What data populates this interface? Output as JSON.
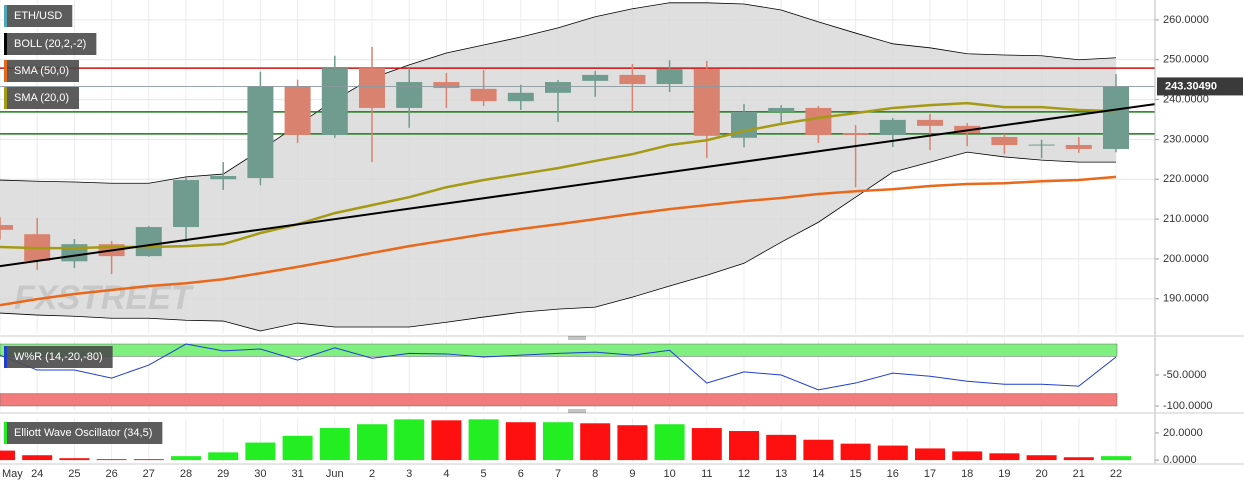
{
  "chart_data": [
    {
      "type": "candlestick",
      "series": [
        {
          "name": "ETH/USD",
          "color": "#4aa8b8",
          "up_color": "#6f9c8e",
          "down_color": "#d9826f",
          "open": [
            208.5,
            206.2,
            199.4,
            203.7,
            200.7,
            208,
            220,
            220.3,
            243.4,
            231.1,
            247.9,
            237.9,
            244.4,
            242.7,
            239.6,
            241.7,
            244.7,
            246.2,
            243.9,
            247.7,
            230.4,
            236.9,
            237.9,
            231.6,
            231.1,
            234.9,
            233.4,
            230.6,
            228.6,
            228.6,
            227.6
          ],
          "high": [
            210.5,
            210.3,
            205,
            204.5,
            208.3,
            220.5,
            224.3,
            247,
            245,
            251,
            253.2,
            247.9,
            246.7,
            247.4,
            243.7,
            244.9,
            247.2,
            248.9,
            249.9,
            249.7,
            238.9,
            238.6,
            238.4,
            233.6,
            235.4,
            236.4,
            234.1,
            231.4,
            229.9,
            230.6,
            246.4
          ],
          "low": [
            204.8,
            197.2,
            197.7,
            196.2,
            200.5,
            204.2,
            217.3,
            218.5,
            229.1,
            230.4,
            224.3,
            232.9,
            237.9,
            238.4,
            237.4,
            234.4,
            240.7,
            236.9,
            241.9,
            225.3,
            228,
            234.1,
            229.1,
            218,
            228.1,
            227.3,
            228.3,
            226.3,
            225.3,
            226.6,
            226.8
          ],
          "close": [
            207.3,
            199.5,
            203.7,
            200.7,
            208,
            219.8,
            220.8,
            243.4,
            231.1,
            247.9,
            237.9,
            244.4,
            242.9,
            239.6,
            241.7,
            244.4,
            246.2,
            243.9,
            247.7,
            230.9,
            236.9,
            237.9,
            231.1,
            231.1,
            234.9,
            233.4,
            231.6,
            228.6,
            228.7,
            227.6,
            243.3
          ]
        }
      ],
      "overlays": [
        {
          "name": "BOLL (20,2,-2)",
          "color": "#000000",
          "upper": [
            219.8,
            219.5,
            219.3,
            219,
            219,
            220.6,
            221.3,
            227.3,
            233.6,
            239.9,
            245.4,
            248.7,
            251.7,
            253.7,
            255.7,
            258,
            260.8,
            262.8,
            264.3,
            264.3,
            264,
            262.5,
            259.5,
            256.7,
            254,
            253,
            251.5,
            251.2,
            251,
            250,
            250.5
          ],
          "lower": [
            186.4,
            185.9,
            185.6,
            185.1,
            185.1,
            184.6,
            184.4,
            181.9,
            183.9,
            182.9,
            182.9,
            182.9,
            184.1,
            185.4,
            186.6,
            187.4,
            187.9,
            190.4,
            193.2,
            195.9,
            198.9,
            204.2,
            209.2,
            215.5,
            221.8,
            224.3,
            226.8,
            225.6,
            224.8,
            224.3,
            224.3
          ]
        },
        {
          "name": "SMA (50,0)",
          "color": "#e8691c",
          "values": [
            188.4,
            189.9,
            191.2,
            192.2,
            193.2,
            193.9,
            194.9,
            196.4,
            198,
            199.7,
            201.5,
            203.2,
            204.7,
            206.2,
            207.5,
            208.7,
            210,
            211.3,
            212.5,
            213.5,
            214.5,
            215.3,
            216.3,
            217,
            217.5,
            218.3,
            218.8,
            219,
            219.5,
            219.8,
            220.6
          ]
        },
        {
          "name": "SMA (20,0)",
          "color": "#a59a14",
          "values": [
            203,
            202.7,
            202.7,
            203,
            203,
            203.2,
            203.7,
            206.5,
            208.7,
            211.5,
            213.5,
            215.5,
            218,
            219.8,
            221.3,
            222.8,
            224.6,
            226.3,
            228.6,
            229.8,
            232.1,
            233.9,
            235.4,
            236.6,
            237.9,
            238.6,
            239.1,
            238.1,
            238.1,
            237.4,
            237.1
          ]
        }
      ],
      "trendline": {
        "color": "#000000",
        "values": [
          198.2,
          237.5
        ]
      },
      "levels": [
        {
          "value": 247.9,
          "color": "#cc1010"
        },
        {
          "value": 236.9,
          "color": "#1a7a1a"
        },
        {
          "value": 231.4,
          "color": "#1a7a1a"
        }
      ],
      "last_price": {
        "value": 243.3049,
        "label": "243.30490"
      },
      "watermark": "FXSTREET",
      "ylim": [
        181.4,
        265
      ],
      "yticks": [
        {
          "value": 190,
          "label": "190.0000"
        },
        {
          "value": 200,
          "label": "200.0000"
        },
        {
          "value": 210,
          "label": "210.0000"
        },
        {
          "value": 220,
          "label": "220.0000"
        },
        {
          "value": 230,
          "label": "230.0000"
        },
        {
          "value": 240,
          "label": "240.0000"
        },
        {
          "value": 250,
          "label": "250.0000"
        },
        {
          "value": 260,
          "label": "260.0000"
        }
      ],
      "grid": true
    },
    {
      "type": "line",
      "series": [
        {
          "name": "W%R (14,-20,-80)",
          "color": "#1f3fd0",
          "values": [
            -18,
            -42,
            -42,
            -55,
            -34,
            0,
            -11,
            -8,
            -26,
            -6,
            -23,
            -15,
            -16,
            -21,
            -18,
            -15,
            -13,
            -18,
            -10,
            -63,
            -45,
            -50,
            -74,
            -63,
            -47,
            -52,
            -60,
            -65,
            -65,
            -68,
            -21
          ]
        }
      ],
      "bands": [
        {
          "from": -20,
          "to": 0,
          "color": "#7ff07f"
        },
        {
          "from": -100,
          "to": -80,
          "color": "#f27c7c"
        }
      ],
      "ylim": [
        -106.5,
        6.5
      ],
      "yticks": [
        {
          "value": -100,
          "label": "-100.0000"
        },
        {
          "value": -50,
          "label": "-50.0000"
        }
      ]
    },
    {
      "type": "bar",
      "series": [
        {
          "name": "Elliott Wave Oscillator (34,5)",
          "values": [
            7,
            3.6,
            1.4,
            0.7,
            0.7,
            2.9,
            5.7,
            12.9,
            17.9,
            23.6,
            26.4,
            30,
            29.3,
            30,
            27.9,
            27.9,
            27.1,
            25.7,
            26.4,
            23.6,
            21.4,
            18.6,
            15,
            12.1,
            10.7,
            8.6,
            6.4,
            5,
            3.6,
            2.1,
            2.9
          ],
          "colors": [
            "#ff1010",
            "#ff1010",
            "#ff1010",
            "#ff1010",
            "#ff1010",
            "#22ee22",
            "#22ee22",
            "#22ee22",
            "#22ee22",
            "#22ee22",
            "#22ee22",
            "#22ee22",
            "#ff1010",
            "#22ee22",
            "#ff1010",
            "#22ee22",
            "#ff1010",
            "#ff1010",
            "#22ee22",
            "#ff1010",
            "#ff1010",
            "#ff1010",
            "#ff1010",
            "#ff1010",
            "#ff1010",
            "#ff1010",
            "#ff1010",
            "#ff1010",
            "#ff1010",
            "#ff1010",
            "#22ee22"
          ]
        }
      ],
      "categories": [
        "May",
        "24",
        "25",
        "26",
        "27",
        "28",
        "29",
        "30",
        "31",
        "Jun",
        "2",
        "3",
        "4",
        "5",
        "6",
        "7",
        "8",
        "9",
        "10",
        "11",
        "12",
        "13",
        "14",
        "15",
        "16",
        "17",
        "18",
        "19",
        "20",
        "21",
        "22"
      ],
      "ylim": [
        -1.4,
        31
      ],
      "yticks": [
        {
          "value": 0,
          "label": "0.0000"
        },
        {
          "value": 20,
          "label": "20.0000"
        }
      ]
    }
  ]
}
